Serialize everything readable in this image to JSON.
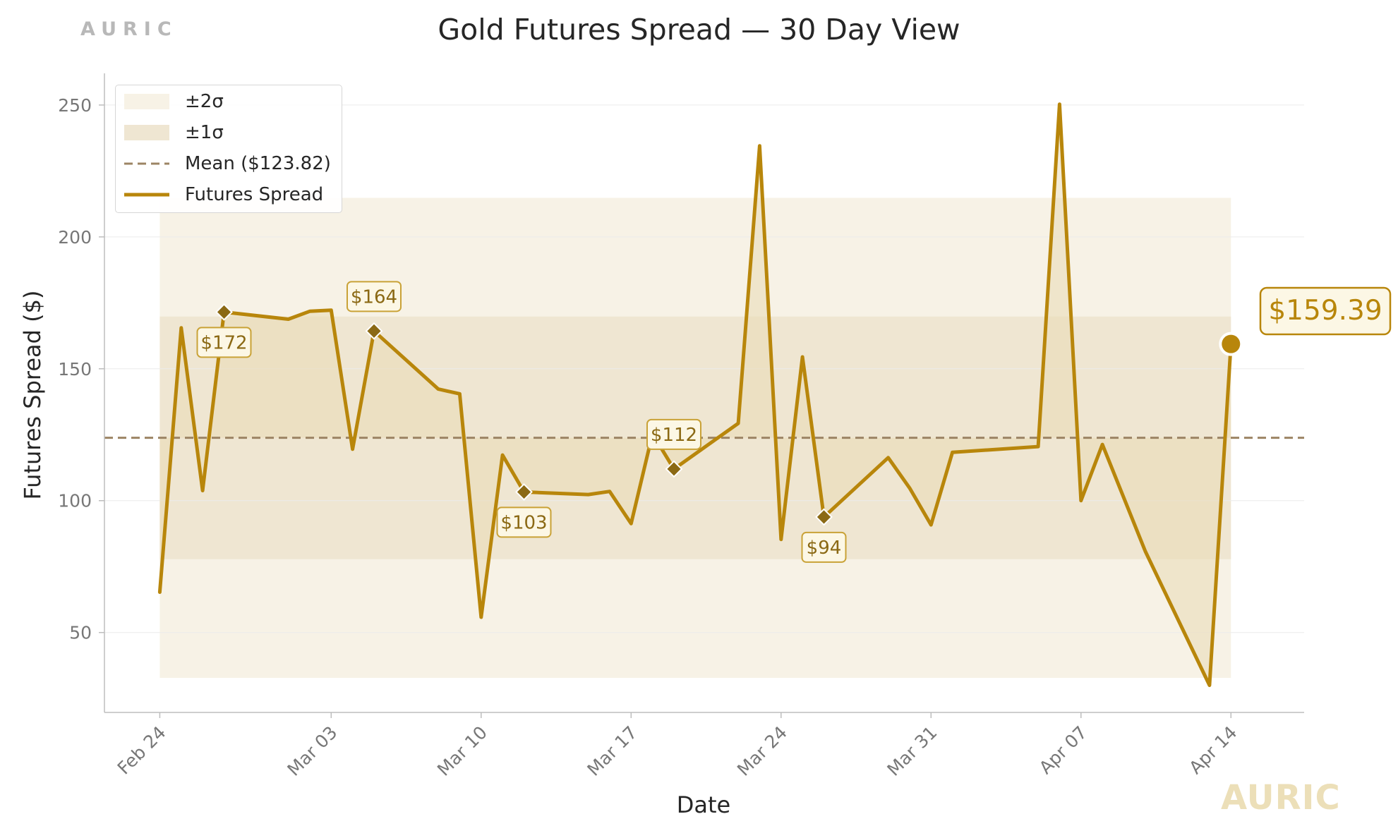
{
  "brand": {
    "top": "AURIC",
    "bottom": "AURIC"
  },
  "chart_data": {
    "type": "line",
    "title": "Gold Futures Spread — 30 Day View",
    "xlabel": "Date",
    "ylabel": "Futures Spread ($)",
    "ylim": [
      19.7,
      262
    ],
    "xlim": [
      "2024-02-21T10:00",
      "2024-04-17T10:00"
    ],
    "yticks": [
      50,
      100,
      150,
      200,
      250
    ],
    "xticks": [
      {
        "date": "2024-02-24",
        "label": "Feb 24"
      },
      {
        "date": "2024-03-03",
        "label": "Mar 03"
      },
      {
        "date": "2024-03-10",
        "label": "Mar 10"
      },
      {
        "date": "2024-03-17",
        "label": "Mar 17"
      },
      {
        "date": "2024-03-24",
        "label": "Mar 24"
      },
      {
        "date": "2024-03-31",
        "label": "Mar 31"
      },
      {
        "date": "2024-04-07",
        "label": "Apr 07"
      },
      {
        "date": "2024-04-14",
        "label": "Apr 14"
      }
    ],
    "grid": "horizontal",
    "legend_position": "top-left",
    "colors": {
      "line": "#b8860b",
      "marker": "#8b6914",
      "mean": "#9c8464",
      "band2": "#f7f2e6",
      "band1": "#efe6d2",
      "fill": "#eadbb4",
      "callout_fill": "#fcf7e5",
      "callout_border": "#c9a237",
      "callout_text": "#8b6914"
    },
    "series": [
      {
        "name": "Futures Spread",
        "points": [
          [
            "2024-02-24",
            65.3
          ],
          [
            "2024-02-25",
            165.5
          ],
          [
            "2024-02-26",
            103.8
          ],
          [
            "2024-02-27",
            171.5
          ],
          [
            "2024-03-01",
            168.8
          ],
          [
            "2024-03-02",
            171.8
          ],
          [
            "2024-03-03",
            172.2
          ],
          [
            "2024-03-04",
            119.5
          ],
          [
            "2024-03-05",
            164.3
          ],
          [
            "2024-03-08",
            142.3
          ],
          [
            "2024-03-09",
            140.5
          ],
          [
            "2024-03-10",
            55.8
          ],
          [
            "2024-03-11",
            117.3
          ],
          [
            "2024-03-12",
            103.3
          ],
          [
            "2024-03-15",
            102.3
          ],
          [
            "2024-03-16",
            103.5
          ],
          [
            "2024-03-17",
            91.3
          ],
          [
            "2024-03-18",
            125.3
          ],
          [
            "2024-03-19",
            112.0
          ],
          [
            "2024-03-22",
            129.3
          ],
          [
            "2024-03-23",
            234.5
          ],
          [
            "2024-03-24",
            85.3
          ],
          [
            "2024-03-25",
            154.5
          ],
          [
            "2024-03-26",
            93.8
          ],
          [
            "2024-03-29",
            116.3
          ],
          [
            "2024-03-30",
            104.8
          ],
          [
            "2024-03-31",
            90.8
          ],
          [
            "2024-04-01",
            118.3
          ],
          [
            "2024-04-05",
            120.5
          ],
          [
            "2024-04-06",
            250.3
          ],
          [
            "2024-04-07",
            100.0
          ],
          [
            "2024-04-08",
            121.3
          ],
          [
            "2024-04-10",
            80.8
          ],
          [
            "2024-04-13",
            30.0
          ],
          [
            "2024-04-14",
            159.39
          ]
        ]
      }
    ],
    "mean": 123.82,
    "band_1sigma": [
      77.8,
      169.8
    ],
    "band_2sigma": [
      32.8,
      214.8
    ],
    "legend": [
      {
        "key": "band2",
        "label": "±2σ"
      },
      {
        "key": "band1",
        "label": "±1σ"
      },
      {
        "key": "mean",
        "label": "Mean ($123.82)"
      },
      {
        "key": "line",
        "label": "Futures Spread"
      }
    ],
    "annotations": [
      {
        "date": "2024-02-27",
        "value": 171.5,
        "label": "$172",
        "placement": "below"
      },
      {
        "date": "2024-03-05",
        "value": 164.3,
        "label": "$164",
        "placement": "above"
      },
      {
        "date": "2024-03-12",
        "value": 103.3,
        "label": "$103",
        "placement": "below"
      },
      {
        "date": "2024-03-19",
        "value": 112.0,
        "label": "$112",
        "placement": "above"
      },
      {
        "date": "2024-03-26",
        "value": 93.8,
        "label": "$94",
        "placement": "below"
      }
    ],
    "last_value": {
      "date": "2024-04-14",
      "value": 159.39,
      "label": "$159.39"
    }
  }
}
